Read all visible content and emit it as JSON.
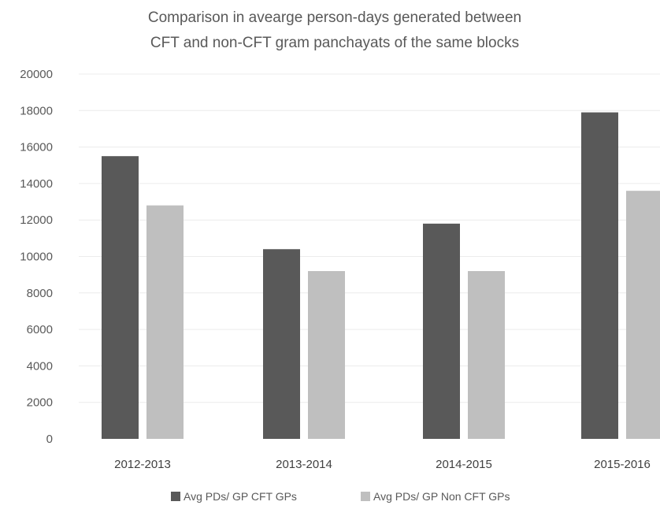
{
  "chart_data": {
    "type": "bar",
    "title": [
      "Comparison  in avearge person-days generated between",
      "CFT and non-CFT  gram panchayats of the same blocks"
    ],
    "categories": [
      "2012-2013",
      "2013-2014",
      "2014-2015",
      "2015-2016"
    ],
    "series": [
      {
        "name": "Avg PDs/ GP CFT GPs",
        "color": "#595959",
        "values": [
          15500,
          10400,
          11800,
          17900
        ]
      },
      {
        "name": "Avg PDs/ GP Non CFT GPs",
        "color": "#bfbfbf",
        "values": [
          12800,
          9200,
          9200,
          13600
        ]
      }
    ],
    "ylim": [
      0,
      20000
    ],
    "yticks": [
      0,
      2000,
      4000,
      6000,
      8000,
      10000,
      12000,
      14000,
      16000,
      18000,
      20000
    ],
    "grid": true,
    "legend_position": "bottom"
  }
}
